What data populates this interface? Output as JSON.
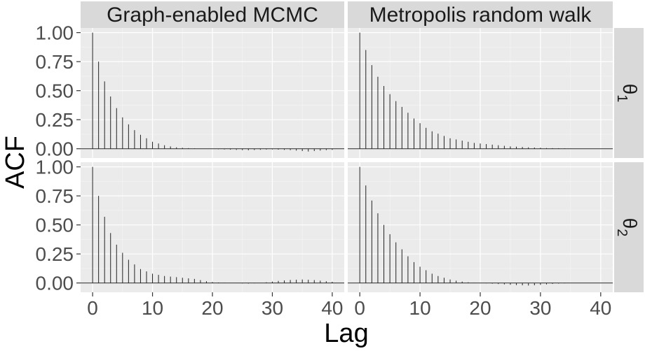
{
  "chart_data": {
    "type": "bar",
    "xlabel": "Lag",
    "ylabel": "ACF",
    "xlim": [
      -2,
      42
    ],
    "ylim": [
      -0.08,
      1.04
    ],
    "x_ticks": [
      0,
      10,
      20,
      30,
      40
    ],
    "y_ticks": [
      0.0,
      0.25,
      0.5,
      0.75,
      1.0
    ],
    "y_tick_labels": [
      "0.00",
      "0.25",
      "0.50",
      "0.75",
      "1.00"
    ],
    "grid": true,
    "facet_columns": [
      "Graph-enabled MCMC",
      "Metropolis random walk"
    ],
    "facet_rows": [
      {
        "label": "θ",
        "subscript": "1"
      },
      {
        "label": "θ",
        "subscript": "2"
      }
    ],
    "panels": [
      {
        "column": "Graph-enabled MCMC",
        "row": 0,
        "lags": [
          0,
          1,
          2,
          3,
          4,
          5,
          6,
          7,
          8,
          9,
          10,
          11,
          12,
          13,
          14,
          15,
          16,
          17,
          18,
          19,
          20,
          21,
          22,
          23,
          24,
          25,
          26,
          27,
          28,
          29,
          30,
          31,
          32,
          33,
          34,
          35,
          36,
          37,
          38,
          39,
          40
        ],
        "values": [
          1.0,
          0.75,
          0.58,
          0.45,
          0.35,
          0.27,
          0.21,
          0.16,
          0.12,
          0.09,
          0.06,
          0.045,
          0.03,
          0.02,
          0.012,
          0.008,
          0.005,
          0.003,
          0.001,
          0.0,
          -0.002,
          -0.004,
          -0.006,
          -0.008,
          -0.01,
          -0.012,
          -0.013,
          -0.011,
          -0.009,
          -0.007,
          -0.006,
          -0.008,
          -0.01,
          -0.012,
          -0.016,
          -0.02,
          -0.024,
          -0.02,
          -0.016,
          -0.012,
          -0.01
        ]
      },
      {
        "column": "Metropolis random walk",
        "row": 0,
        "lags": [
          0,
          1,
          2,
          3,
          4,
          5,
          6,
          7,
          8,
          9,
          10,
          11,
          12,
          13,
          14,
          15,
          16,
          17,
          18,
          19,
          20,
          21,
          22,
          23,
          24,
          25,
          26,
          27,
          28,
          29,
          30,
          31,
          32,
          33,
          34,
          35,
          36,
          37,
          38,
          39,
          40
        ],
        "values": [
          1.0,
          0.85,
          0.72,
          0.62,
          0.54,
          0.47,
          0.41,
          0.36,
          0.31,
          0.26,
          0.22,
          0.18,
          0.15,
          0.13,
          0.11,
          0.09,
          0.08,
          0.07,
          0.06,
          0.05,
          0.045,
          0.04,
          0.035,
          0.03,
          0.025,
          0.02,
          0.018,
          0.015,
          0.012,
          0.01,
          0.008,
          0.006,
          0.005,
          0.004,
          0.003,
          0.002,
          0.001,
          0.0,
          0.0,
          -0.001,
          -0.002
        ]
      },
      {
        "column": "Graph-enabled MCMC",
        "row": 1,
        "lags": [
          0,
          1,
          2,
          3,
          4,
          5,
          6,
          7,
          8,
          9,
          10,
          11,
          12,
          13,
          14,
          15,
          16,
          17,
          18,
          19,
          20,
          21,
          22,
          23,
          24,
          25,
          26,
          27,
          28,
          29,
          30,
          31,
          32,
          33,
          34,
          35,
          36,
          37,
          38,
          39,
          40
        ],
        "values": [
          1.0,
          0.75,
          0.57,
          0.43,
          0.33,
          0.26,
          0.2,
          0.16,
          0.12,
          0.1,
          0.08,
          0.07,
          0.06,
          0.055,
          0.05,
          0.045,
          0.04,
          0.035,
          0.025,
          0.015,
          0.008,
          0.004,
          0.002,
          0.0,
          -0.002,
          -0.004,
          -0.005,
          -0.003,
          0.0,
          0.006,
          0.012,
          0.018,
          0.022,
          0.026,
          0.028,
          0.03,
          0.028,
          0.025,
          0.02,
          0.015,
          0.01
        ]
      },
      {
        "column": "Metropolis random walk",
        "row": 1,
        "lags": [
          0,
          1,
          2,
          3,
          4,
          5,
          6,
          7,
          8,
          9,
          10,
          11,
          12,
          13,
          14,
          15,
          16,
          17,
          18,
          19,
          20,
          21,
          22,
          23,
          24,
          25,
          26,
          27,
          28,
          29,
          30,
          31,
          32,
          33,
          34,
          35,
          36,
          37,
          38,
          39,
          40
        ],
        "values": [
          1.0,
          0.84,
          0.71,
          0.6,
          0.5,
          0.42,
          0.35,
          0.29,
          0.23,
          0.18,
          0.14,
          0.11,
          0.08,
          0.06,
          0.045,
          0.03,
          0.02,
          0.012,
          0.006,
          0.002,
          0.0,
          -0.003,
          -0.006,
          -0.009,
          -0.012,
          -0.015,
          -0.018,
          -0.02,
          -0.022,
          -0.02,
          -0.016,
          -0.012,
          -0.008,
          -0.005,
          -0.003,
          -0.001,
          0.0,
          0.0,
          0.0,
          0.0,
          0.0
        ]
      }
    ]
  }
}
